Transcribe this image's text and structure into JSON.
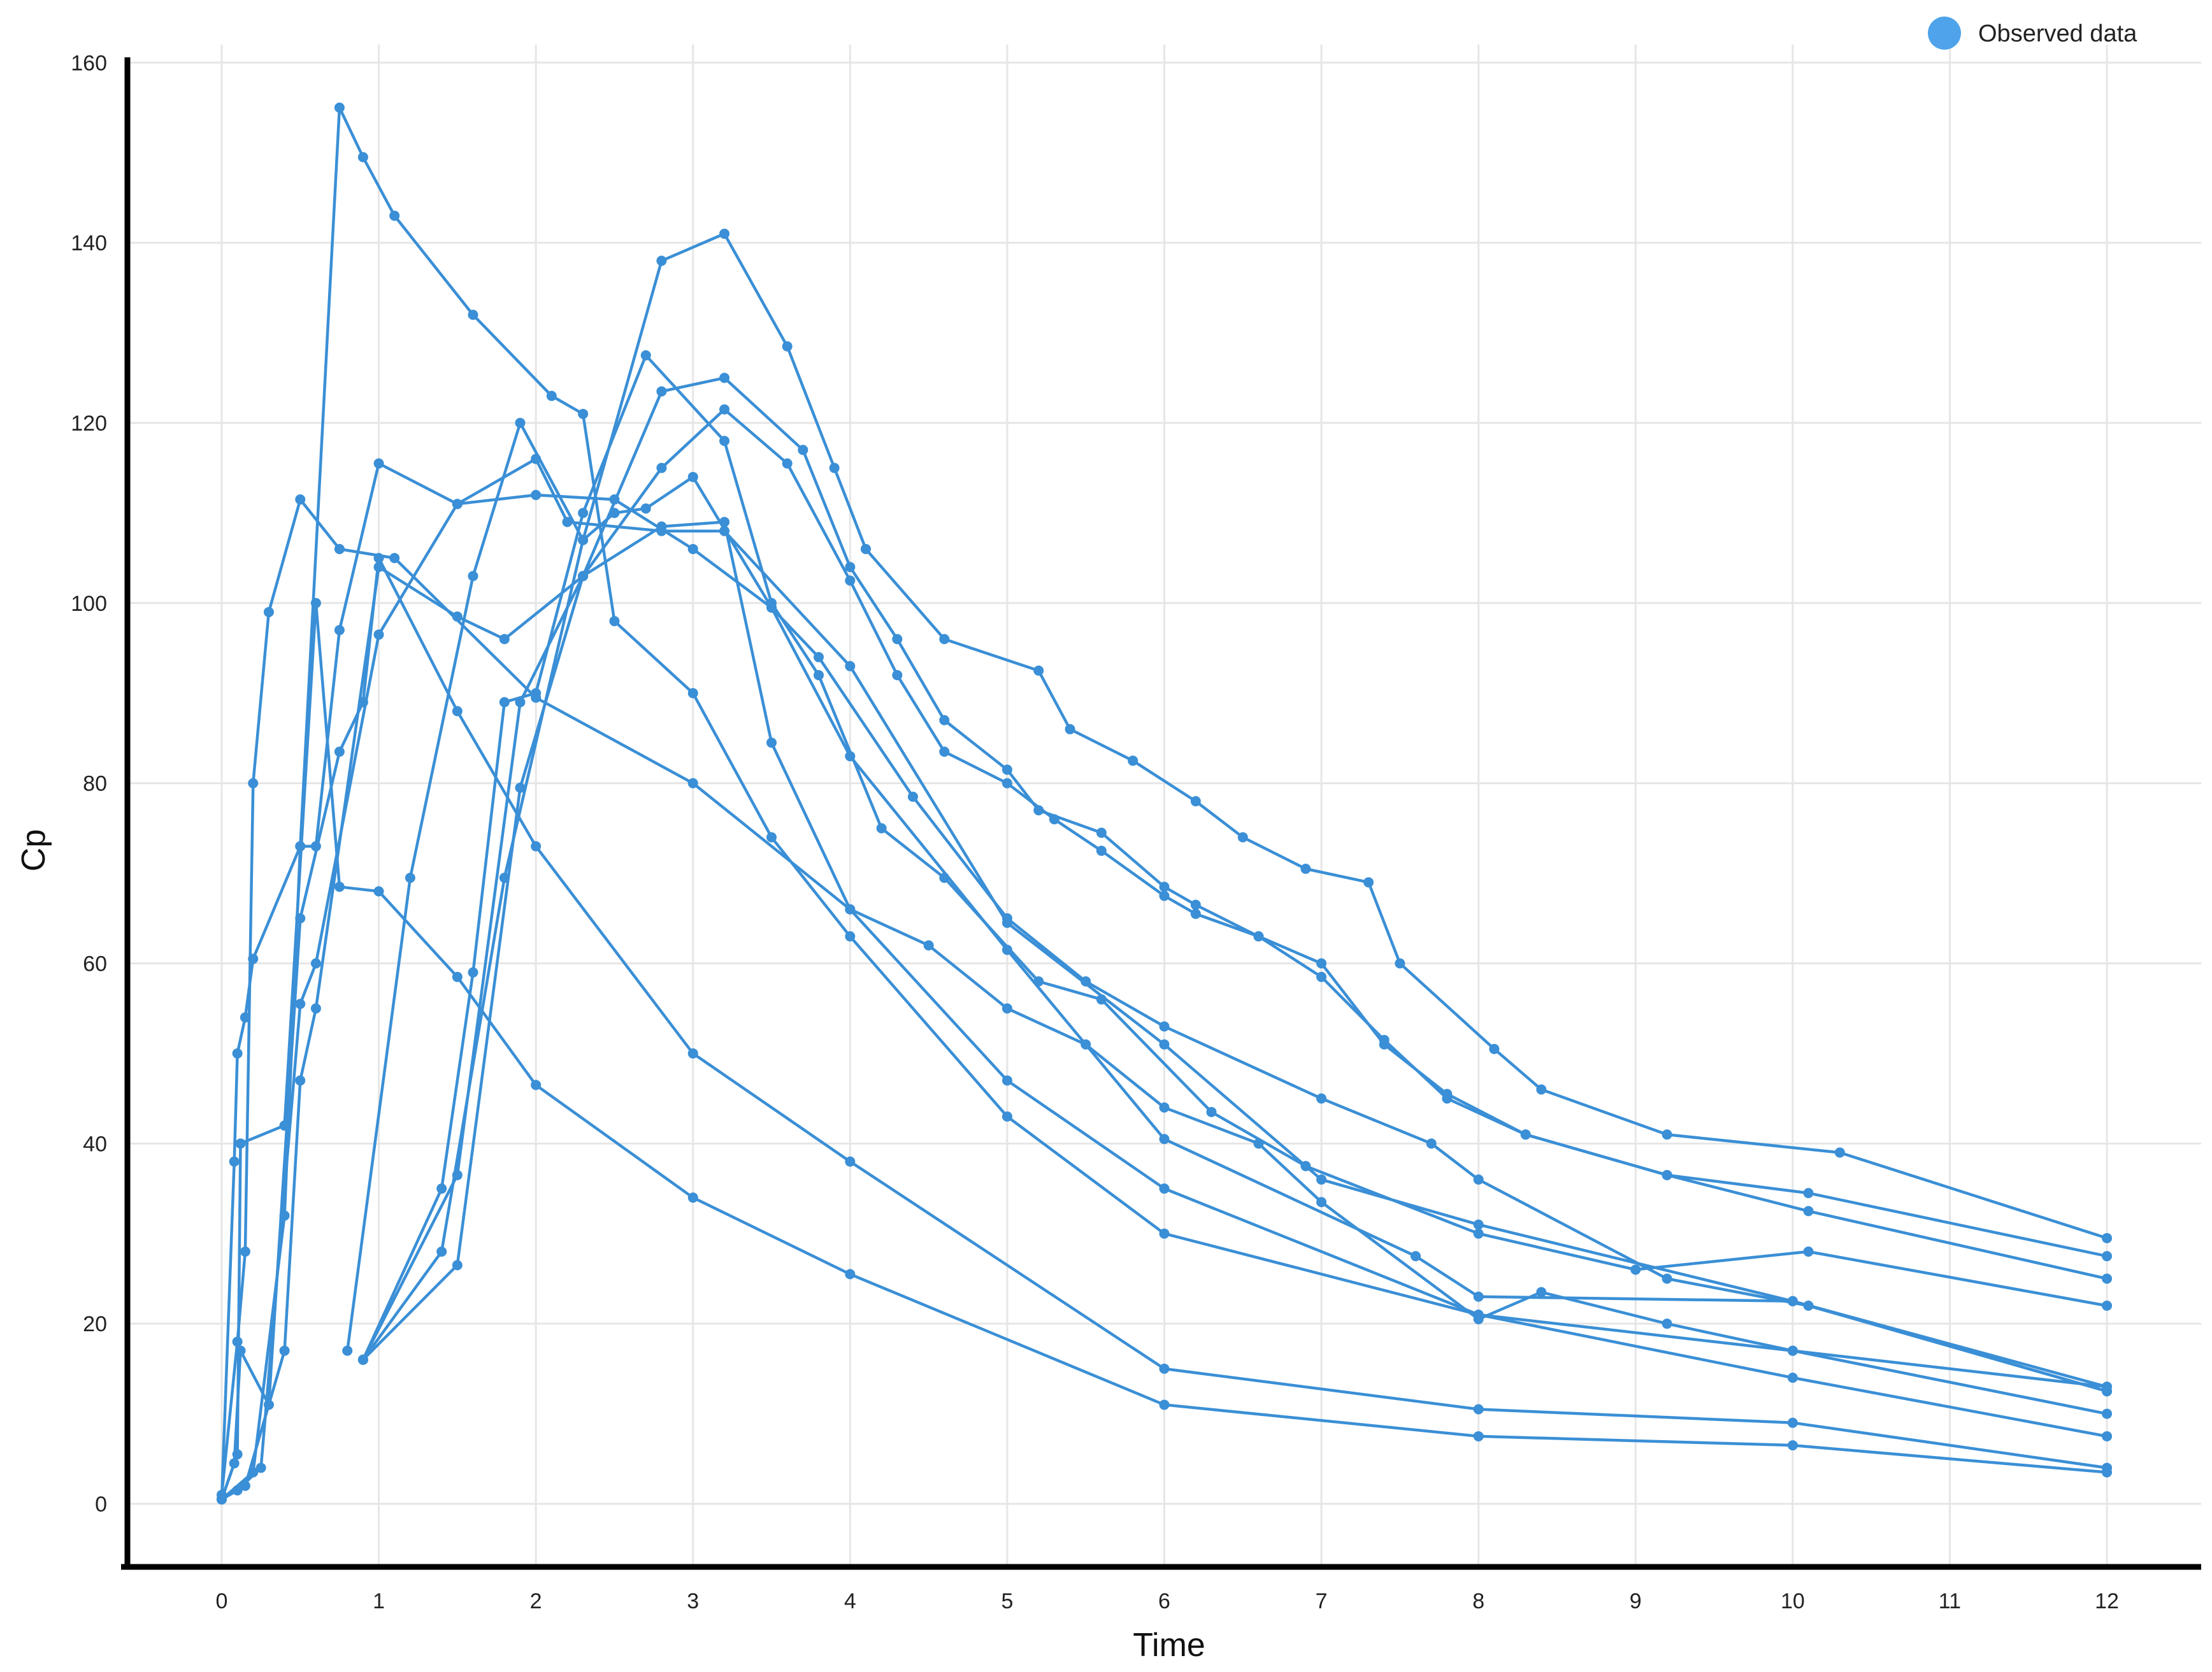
{
  "chart_data": {
    "type": "line",
    "xlabel": "Time",
    "ylabel": "Cp",
    "xlim": [
      -0.6,
      12.6
    ],
    "ylim": [
      -7,
      162
    ],
    "xticks": [
      0,
      1,
      2,
      3,
      4,
      5,
      6,
      7,
      8,
      9,
      10,
      11,
      12
    ],
    "yticks": [
      0,
      20,
      40,
      60,
      80,
      100,
      120,
      140,
      160
    ],
    "grid": true,
    "legend": {
      "position": "top-right",
      "label": "Observed data"
    },
    "colors": {
      "series": "#3a8fd6",
      "legend_marker": "#4fa3ea",
      "grid": "#e6e6e6",
      "axis": "#000000"
    },
    "series": [
      {
        "points": [
          [
            0,
            0.5
          ],
          [
            0.08,
            38
          ],
          [
            0.1,
            50
          ],
          [
            0.15,
            54
          ],
          [
            0.2,
            60.5
          ],
          [
            0.5,
            73
          ],
          [
            0.75,
            155
          ],
          [
            0.9,
            149.5
          ],
          [
            1.1,
            143
          ],
          [
            1.6,
            132
          ],
          [
            2.1,
            123
          ],
          [
            2.3,
            121
          ],
          [
            2.5,
            98
          ],
          [
            3,
            90
          ],
          [
            3.5,
            74
          ],
          [
            4,
            63
          ],
          [
            5,
            43
          ],
          [
            6,
            30
          ],
          [
            8,
            21
          ],
          [
            10,
            17
          ],
          [
            12,
            13
          ]
        ]
      },
      {
        "points": [
          [
            0,
            1
          ],
          [
            0.1,
            18
          ],
          [
            0.15,
            28
          ],
          [
            0.2,
            80
          ],
          [
            0.3,
            99
          ],
          [
            0.5,
            111.5
          ],
          [
            0.75,
            106
          ],
          [
            1.1,
            105
          ],
          [
            2,
            89.5
          ],
          [
            3,
            80
          ],
          [
            4,
            66
          ],
          [
            5,
            47
          ],
          [
            6,
            35
          ],
          [
            8,
            21
          ],
          [
            10,
            14
          ],
          [
            12,
            7.5
          ]
        ]
      },
      {
        "points": [
          [
            0,
            0.5
          ],
          [
            0.08,
            4.5
          ],
          [
            0.12,
            17
          ],
          [
            0.3,
            11
          ],
          [
            0.5,
            65
          ],
          [
            0.75,
            83.5
          ],
          [
            0.9,
            89
          ],
          [
            1,
            105
          ],
          [
            1.5,
            88
          ],
          [
            2,
            73
          ],
          [
            3,
            50
          ],
          [
            4,
            38
          ],
          [
            6,
            15
          ],
          [
            8,
            10.5
          ],
          [
            10,
            9
          ],
          [
            12,
            4
          ]
        ]
      },
      {
        "points": [
          [
            0,
            0.5
          ],
          [
            0.1,
            5.5
          ],
          [
            0.12,
            40
          ],
          [
            0.4,
            42
          ],
          [
            0.6,
            100
          ],
          [
            0.75,
            68.5
          ],
          [
            1,
            68
          ],
          [
            1.5,
            58.5
          ],
          [
            2,
            46.5
          ],
          [
            3,
            34
          ],
          [
            4,
            25.5
          ],
          [
            6,
            11
          ],
          [
            8,
            7.5
          ],
          [
            10,
            6.5
          ],
          [
            12,
            3.5
          ]
        ]
      },
      {
        "points": [
          [
            0,
            0.5
          ],
          [
            0.2,
            3.5
          ],
          [
            0.4,
            32
          ],
          [
            0.5,
            73
          ],
          [
            0.6,
            73
          ],
          [
            0.75,
            97
          ],
          [
            1,
            115.5
          ],
          [
            1.5,
            111
          ],
          [
            2,
            112
          ],
          [
            2.5,
            111.5
          ],
          [
            3,
            106
          ],
          [
            3.5,
            99.5
          ],
          [
            4,
            83
          ],
          [
            5,
            61.5
          ],
          [
            6,
            40.5
          ],
          [
            7.6,
            27.5
          ],
          [
            8,
            23
          ],
          [
            10,
            22.5
          ],
          [
            12,
            12.5
          ]
        ]
      },
      {
        "points": [
          [
            0,
            0.5
          ],
          [
            0.1,
            1.5
          ],
          [
            0.25,
            4
          ],
          [
            0.5,
            55.5
          ],
          [
            0.6,
            60
          ],
          [
            1,
            96.5
          ],
          [
            1.5,
            111
          ],
          [
            2,
            116
          ],
          [
            2.2,
            109
          ],
          [
            2.8,
            108
          ],
          [
            3.2,
            108
          ],
          [
            4,
            93
          ],
          [
            5,
            64.5
          ],
          [
            6,
            51
          ],
          [
            7,
            36
          ],
          [
            8,
            31
          ],
          [
            10,
            22.5
          ],
          [
            12,
            13
          ]
        ]
      },
      {
        "points": [
          [
            0,
            0.5
          ],
          [
            0.15,
            2
          ],
          [
            0.4,
            17
          ],
          [
            0.5,
            47
          ],
          [
            0.6,
            55
          ],
          [
            1,
            104
          ],
          [
            1.5,
            98.5
          ],
          [
            1.8,
            96
          ],
          [
            2.3,
            103
          ],
          [
            2.8,
            108.5
          ],
          [
            3.2,
            109
          ],
          [
            3.5,
            84.5
          ],
          [
            4,
            66
          ],
          [
            4.5,
            62
          ],
          [
            5,
            55
          ],
          [
            5.5,
            51
          ],
          [
            6,
            44
          ],
          [
            6.6,
            40
          ],
          [
            7,
            33.5
          ],
          [
            8,
            20.5
          ],
          [
            8.4,
            23.5
          ],
          [
            9.2,
            20
          ],
          [
            10,
            17
          ],
          [
            12,
            10
          ]
        ]
      },
      {
        "points": [
          [
            0.8,
            17
          ],
          [
            1.2,
            69.5
          ],
          [
            1.6,
            103
          ],
          [
            1.9,
            120
          ],
          [
            2.3,
            107
          ],
          [
            2.5,
            110
          ],
          [
            2.7,
            110.5
          ],
          [
            3,
            114
          ],
          [
            3.5,
            99.5
          ],
          [
            3.8,
            94
          ],
          [
            4.4,
            78.5
          ],
          [
            5,
            65
          ],
          [
            5.5,
            58
          ],
          [
            6,
            53
          ],
          [
            7,
            45
          ],
          [
            7.7,
            40
          ],
          [
            8,
            36
          ],
          [
            9.2,
            25
          ],
          [
            10.1,
            22
          ],
          [
            12,
            12.5
          ]
        ]
      },
      {
        "points": [
          [
            0.9,
            16
          ],
          [
            1.4,
            35
          ],
          [
            1.6,
            59
          ],
          [
            1.8,
            89
          ],
          [
            2,
            90
          ],
          [
            2.3,
            110
          ],
          [
            2.7,
            127.5
          ],
          [
            3.2,
            118
          ],
          [
            3.5,
            100
          ],
          [
            3.8,
            92
          ],
          [
            4.2,
            75
          ],
          [
            4.6,
            69.5
          ],
          [
            5.2,
            58
          ],
          [
            5.6,
            56
          ],
          [
            6.3,
            43.5
          ],
          [
            6.9,
            37.5
          ],
          [
            8,
            30
          ],
          [
            9,
            26
          ],
          [
            10.1,
            28
          ],
          [
            12,
            22
          ]
        ]
      },
      {
        "points": [
          [
            0.9,
            16
          ],
          [
            1.4,
            28
          ],
          [
            1.8,
            69.5
          ],
          [
            2.3,
            107
          ],
          [
            2.8,
            138
          ],
          [
            3.2,
            141
          ],
          [
            3.6,
            128.5
          ],
          [
            3.9,
            115
          ],
          [
            4.1,
            106
          ],
          [
            4.6,
            96
          ],
          [
            5.2,
            92.5
          ],
          [
            5.4,
            86
          ],
          [
            5.8,
            82.5
          ],
          [
            6.2,
            78
          ],
          [
            6.5,
            74
          ],
          [
            6.9,
            70.5
          ],
          [
            7.3,
            69
          ],
          [
            7.5,
            60
          ],
          [
            8.1,
            50.5
          ],
          [
            8.4,
            46
          ],
          [
            9.2,
            41
          ],
          [
            10.3,
            39
          ],
          [
            12,
            29.5
          ]
        ]
      },
      {
        "points": [
          [
            0.9,
            16
          ],
          [
            1.5,
            26.5
          ],
          [
            1.9,
            79.5
          ],
          [
            2.3,
            103
          ],
          [
            2.8,
            123.5
          ],
          [
            3.2,
            125
          ],
          [
            3.7,
            117
          ],
          [
            4,
            104
          ],
          [
            4.3,
            96
          ],
          [
            4.6,
            87
          ],
          [
            5,
            81.5
          ],
          [
            5.2,
            77
          ],
          [
            5.6,
            74.5
          ],
          [
            6,
            68.5
          ],
          [
            6.2,
            66.5
          ],
          [
            6.6,
            63
          ],
          [
            7,
            60
          ],
          [
            7.4,
            51
          ],
          [
            7.8,
            45.5
          ],
          [
            8.3,
            41
          ],
          [
            9.2,
            36.5
          ],
          [
            10.1,
            34.5
          ],
          [
            12,
            27.5
          ]
        ]
      },
      {
        "points": [
          [
            0.9,
            16
          ],
          [
            1.5,
            36.5
          ],
          [
            1.9,
            89
          ],
          [
            2.3,
            103
          ],
          [
            2.8,
            115
          ],
          [
            3.2,
            121.5
          ],
          [
            3.6,
            115.5
          ],
          [
            4,
            102.5
          ],
          [
            4.3,
            92
          ],
          [
            4.6,
            83.5
          ],
          [
            5,
            80
          ],
          [
            5.3,
            76
          ],
          [
            5.6,
            72.5
          ],
          [
            6,
            67.5
          ],
          [
            6.2,
            65.5
          ],
          [
            6.6,
            63
          ],
          [
            7,
            58.5
          ],
          [
            7.4,
            51.5
          ],
          [
            7.8,
            45
          ],
          [
            8.3,
            41
          ],
          [
            9.2,
            36.5
          ],
          [
            10.1,
            32.5
          ],
          [
            12,
            25
          ]
        ]
      }
    ]
  }
}
